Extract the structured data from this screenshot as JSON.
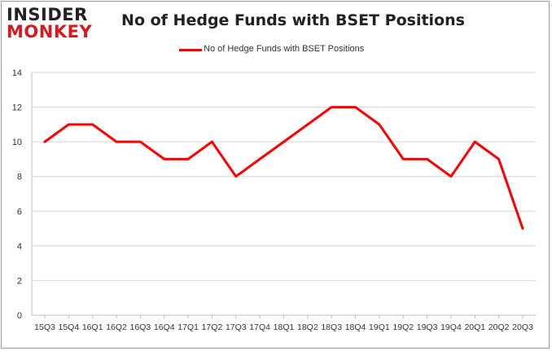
{
  "logo": {
    "line1": "INSIDER",
    "line2": "MONKEY"
  },
  "chart_data": {
    "type": "line",
    "title": "No of Hedge Funds with BSET Positions",
    "xlabel": "",
    "ylabel": "",
    "ylim": [
      0,
      14
    ],
    "yticks": [
      0,
      2,
      4,
      6,
      8,
      10,
      12,
      14
    ],
    "grid": true,
    "legend_position": "top-center",
    "x": [
      "15Q3",
      "15Q4",
      "16Q1",
      "16Q2",
      "16Q3",
      "16Q4",
      "17Q1",
      "17Q2",
      "17Q3",
      "17Q4",
      "18Q1",
      "18Q2",
      "18Q3",
      "18Q4",
      "19Q1",
      "19Q2",
      "19Q3",
      "19Q4",
      "20Q1",
      "20Q2",
      "20Q3"
    ],
    "series": [
      {
        "name": "No of Hedge Funds with BSET Positions",
        "color": "#ff0000",
        "values": [
          10,
          11,
          11,
          10,
          10,
          9,
          9,
          10,
          8,
          9,
          10,
          11,
          12,
          12,
          11,
          9,
          9,
          8,
          10,
          9,
          5
        ]
      }
    ]
  }
}
